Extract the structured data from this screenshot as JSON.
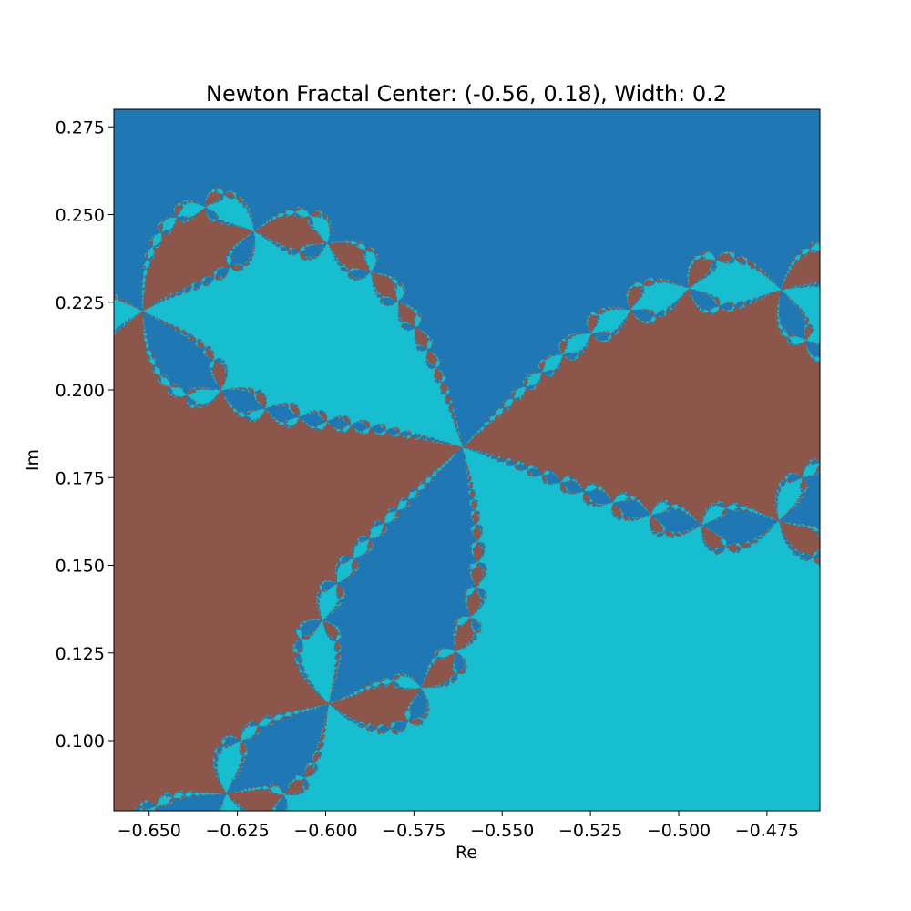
{
  "chart_data": {
    "type": "heatmap",
    "title": "Newton Fractal Center: (-0.56, 0.18), Width: 0.2",
    "xlabel": "Re",
    "ylabel": "Im",
    "center": [
      -0.56,
      0.18
    ],
    "width": 0.2,
    "xlim": [
      -0.66,
      -0.46
    ],
    "ylim": [
      0.08,
      0.28
    ],
    "grid": false,
    "function": "z^3 - 1",
    "root_colors": [
      "#17becf",
      "#1f77b4",
      "#8c564b"
    ],
    "xticks": [
      -0.65,
      -0.625,
      -0.6,
      -0.575,
      -0.55,
      -0.525,
      -0.5,
      -0.475
    ],
    "xtick_labels": [
      "−0.650",
      "−0.625",
      "−0.600",
      "−0.575",
      "−0.550",
      "−0.525",
      "−0.500",
      "−0.475"
    ],
    "yticks": [
      0.1,
      0.125,
      0.15,
      0.175,
      0.2,
      0.225,
      0.25,
      0.275
    ],
    "ytick_labels": [
      "0.100",
      "0.125",
      "0.150",
      "0.175",
      "0.200",
      "0.225",
      "0.250",
      "0.275"
    ]
  }
}
